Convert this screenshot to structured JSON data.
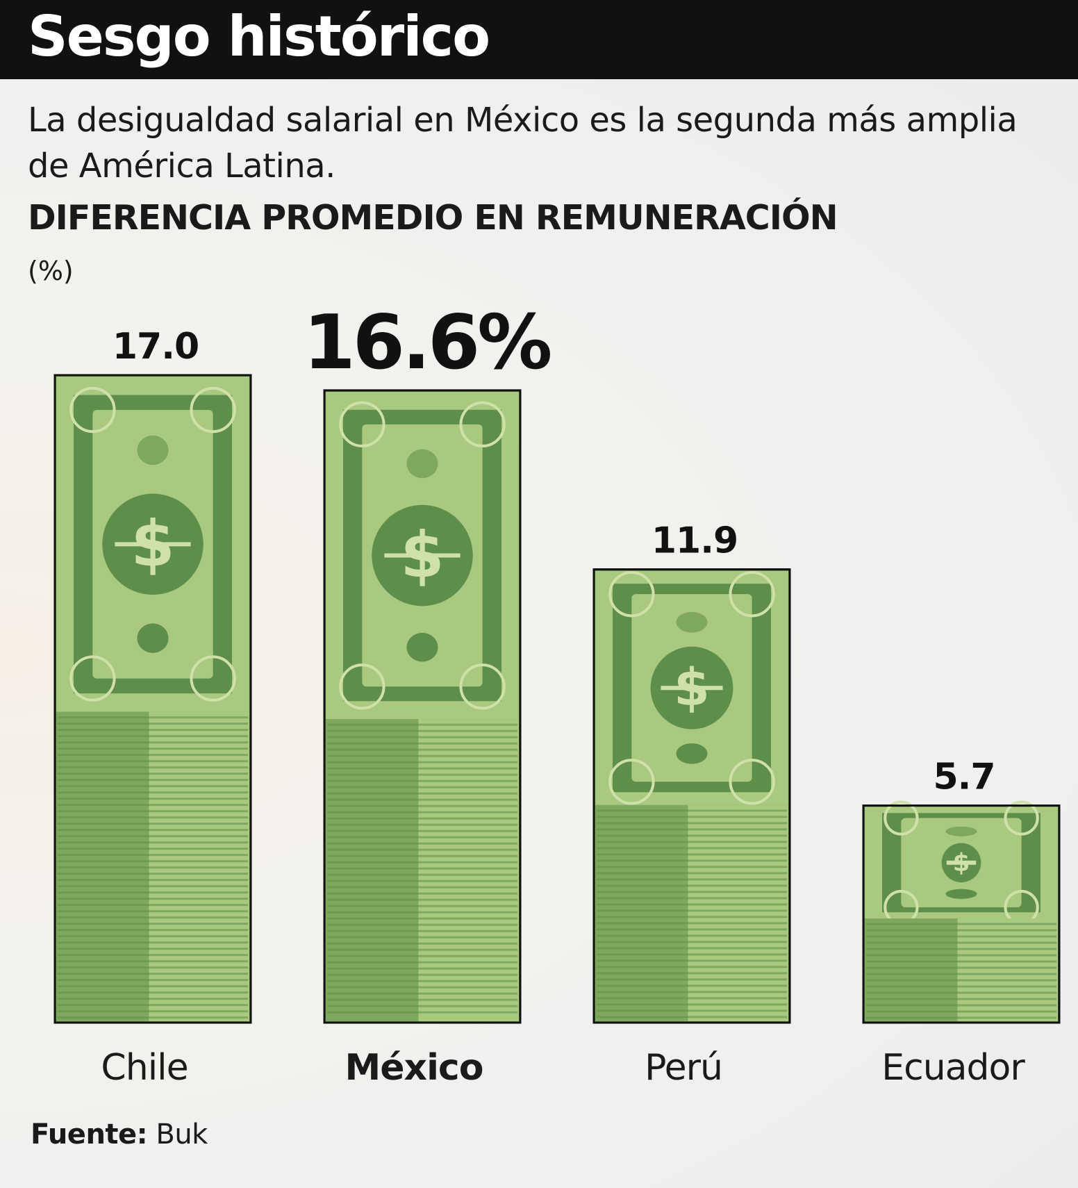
{
  "header": {
    "title": "Sesgo histórico",
    "subtitle": "La desigualdad salarial en México es la segunda más amplia de América Latina."
  },
  "chart_data": {
    "type": "bar",
    "title": "DIFERENCIA PROMEDIO EN REMUNERACIÓN",
    "unit": "(%)",
    "categories": [
      "Chile",
      "México",
      "Perú",
      "Ecuador"
    ],
    "values": [
      17.0,
      16.6,
      11.9,
      5.7
    ],
    "value_labels": [
      "17.0",
      "16.6%",
      "11.9",
      "5.7"
    ],
    "highlight": "México",
    "ylim": [
      0,
      17.0
    ],
    "colors": {
      "bill_dark": "#5e8f4a",
      "bill_mid": "#7fa85f",
      "bill_light": "#a9c97f",
      "bill_pale": "#cfe0a8",
      "outline": "#111111"
    }
  },
  "footer": {
    "source_label": "Fuente:",
    "source_value": "Buk"
  }
}
